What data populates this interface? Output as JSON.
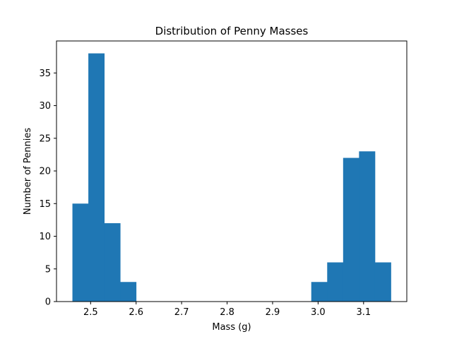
{
  "chart_data": {
    "type": "bar",
    "title": "Distribution of Penny Masses",
    "xlabel": "Mass (g)",
    "ylabel": "Number of Pennies",
    "bin_edges": [
      2.46,
      2.495,
      2.53,
      2.565,
      2.6,
      2.635,
      2.67,
      2.705,
      2.74,
      2.775,
      2.81,
      2.845,
      2.88,
      2.915,
      2.95,
      2.985,
      3.02,
      3.055,
      3.09,
      3.125,
      3.16
    ],
    "values": [
      15,
      38,
      12,
      3,
      0,
      0,
      0,
      0,
      0,
      0,
      0,
      0,
      0,
      0,
      0,
      3,
      6,
      22,
      23,
      6
    ],
    "xlim": [
      2.425,
      3.195
    ],
    "ylim": [
      0,
      39.9
    ],
    "xticks": [
      2.5,
      2.6,
      2.7,
      2.8,
      2.9,
      3.0,
      3.1
    ],
    "xtick_labels": [
      "2.5",
      "2.6",
      "2.7",
      "2.8",
      "2.9",
      "3.0",
      "3.1"
    ],
    "yticks": [
      0,
      5,
      10,
      15,
      20,
      25,
      30,
      35
    ],
    "ytick_labels": [
      "0",
      "5",
      "10",
      "15",
      "20",
      "25",
      "30",
      "35"
    ],
    "bar_color": "#1f77b4",
    "grid": false,
    "legend": "none"
  }
}
